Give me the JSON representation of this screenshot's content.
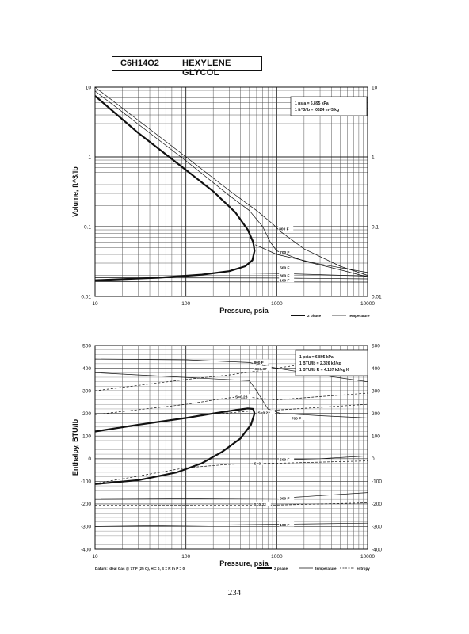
{
  "header": {
    "formula": "C6H14O2",
    "name": "HEXYLENE GLYCOL"
  },
  "page_number": "234",
  "chart_data": [
    {
      "type": "line",
      "xscale": "log",
      "yscale": "log",
      "xlim": [
        10,
        10000
      ],
      "ylim": [
        0.01,
        10
      ],
      "xlabel": "Pressure,  psia",
      "ylabel": "Volume, ft^3/lb",
      "x_ticks": [
        "10",
        "100",
        "1000",
        "10000"
      ],
      "y_ticks": [
        "0.01",
        "0.1",
        "1",
        "10"
      ],
      "right_ticks": [
        "0.01",
        "0.1",
        "1",
        "10"
      ],
      "grid": true,
      "info_box": {
        "position": "top-right",
        "lines": [
          "1 psia = 6.895 kPa",
          "1 ft^3/lb = .0624 m^3/kg"
        ]
      },
      "legend": {
        "position": "bottom-right",
        "items": [
          "2 phase",
          "temperature"
        ]
      },
      "series": [
        {
          "label": "",
          "style": "2phase",
          "points": [
            [
              10,
              7.5
            ],
            [
              30,
              2.2
            ],
            [
              100,
              0.65
            ],
            [
              200,
              0.32
            ],
            [
              350,
              0.16
            ],
            [
              480,
              0.09
            ],
            [
              550,
              0.06
            ],
            [
              570,
              0.045
            ],
            [
              540,
              0.033
            ],
            [
              450,
              0.027
            ],
            [
              300,
              0.023
            ],
            [
              150,
              0.0205
            ],
            [
              50,
              0.0185
            ],
            [
              10,
              0.017
            ]
          ]
        },
        {
          "label": "",
          "style": "temperature",
          "points": [
            [
              10,
              10
            ],
            [
              100,
              1
            ],
            [
              300,
              0.33
            ],
            [
              600,
              0.17
            ],
            [
              900,
              0.11
            ],
            [
              1100,
              0.085
            ],
            [
              2000,
              0.048
            ],
            [
              5000,
              0.027
            ],
            [
              10000,
              0.02
            ]
          ]
        },
        {
          "label": "800 F",
          "style": "temperature",
          "points": [
            [
              10,
              8.8
            ],
            [
              100,
              0.88
            ],
            [
              300,
              0.28
            ],
            [
              500,
              0.17
            ],
            [
              700,
              0.1
            ],
            [
              850,
              0.06
            ],
            [
              1000,
              0.045
            ],
            [
              2000,
              0.032
            ],
            [
              5000,
              0.024
            ],
            [
              10000,
              0.019
            ]
          ]
        },
        {
          "label": "700 F",
          "style": "temperature",
          "points": [
            [
              580,
              0.055
            ],
            [
              1000,
              0.04
            ],
            [
              3000,
              0.029
            ],
            [
              10000,
              0.022
            ]
          ]
        },
        {
          "label": "500 F",
          "style": "temperature",
          "points": [
            [
              10,
              0.0215
            ],
            [
              500,
              0.0215
            ],
            [
              1000,
              0.0213
            ],
            [
              3000,
              0.0205
            ],
            [
              10000,
              0.0195
            ]
          ]
        },
        {
          "label": "300 F",
          "style": "temperature",
          "points": [
            [
              10,
              0.0185
            ],
            [
              1000,
              0.0183
            ],
            [
              10000,
              0.0178
            ]
          ]
        },
        {
          "label": "100 F",
          "style": "temperature",
          "points": [
            [
              10,
              0.0162
            ],
            [
              10000,
              0.016
            ]
          ]
        }
      ]
    },
    {
      "type": "line",
      "xscale": "log",
      "yscale": "linear",
      "xlim": [
        10,
        10000
      ],
      "ylim": [
        -400,
        500
      ],
      "xlabel": "Pressure,  psia",
      "ylabel": "Enthalpy, BTU/lb",
      "x_ticks": [
        "10",
        "100",
        "1000",
        "10000"
      ],
      "y_ticks": [
        "-400",
        "-300",
        "-200",
        "-100",
        "0",
        "100",
        "200",
        "300",
        "400",
        "500"
      ],
      "right_ticks": [
        "-400",
        "-300",
        "-200",
        "-100",
        "0",
        "100",
        "200",
        "300",
        "400",
        "500"
      ],
      "grid": true,
      "info_box": {
        "position": "top-right",
        "lines": [
          "1 psia = 6.895 kPa",
          "1 BTU/lb = 2.326 kJ/kg",
          "1 BTU/lb R = 4.187 kJ/kg K"
        ]
      },
      "legend": {
        "position": "bottom-right",
        "items": [
          "2 phase",
          "temperature",
          "entropy"
        ]
      },
      "footnote": "Datum: Ideal Gas @ 77 F (25 C), H = 0, S = R ln P = 0",
      "series": [
        {
          "label": "",
          "style": "2phase",
          "points": [
            [
              10,
              120
            ],
            [
              30,
              150
            ],
            [
              100,
              180
            ],
            [
              200,
              200
            ],
            [
              350,
              215
            ],
            [
              480,
              222
            ],
            [
              550,
              220
            ],
            [
              570,
              200
            ],
            [
              520,
              150
            ],
            [
              400,
              90
            ],
            [
              250,
              30
            ],
            [
              150,
              -20
            ],
            [
              80,
              -60
            ],
            [
              30,
              -95
            ],
            [
              10,
              -112
            ]
          ]
        },
        {
          "label": "800 F",
          "style": "temperature",
          "points": [
            [
              10,
              440
            ],
            [
              100,
              437
            ],
            [
              500,
              425
            ],
            [
              1000,
              400
            ],
            [
              3000,
              370
            ],
            [
              10000,
              340
            ]
          ]
        },
        {
          "label": "700 F",
          "style": "temperature",
          "points": [
            [
              10,
              380
            ],
            [
              500,
              345
            ],
            [
              600,
              300
            ],
            [
              800,
              220
            ],
            [
              1100,
              200
            ],
            [
              3000,
              190
            ],
            [
              10000,
              180
            ]
          ]
        },
        {
          "label": "500 F",
          "style": "temperature",
          "points": [
            [
              10,
              -5
            ],
            [
              1000,
              -5
            ],
            [
              3000,
              0
            ],
            [
              10000,
              12
            ]
          ]
        },
        {
          "label": "300 F",
          "style": "temperature",
          "points": [
            [
              10,
              -180
            ],
            [
              1000,
              -175
            ],
            [
              10000,
              -150
            ]
          ]
        },
        {
          "label": "100 F",
          "style": "temperature",
          "points": [
            [
              10,
              -300
            ],
            [
              10000,
              -285
            ]
          ]
        },
        {
          "label": "S=0.37",
          "style": "entropy",
          "points": [
            [
              10,
              300
            ],
            [
              100,
              350
            ],
            [
              300,
              370
            ],
            [
              1000,
              400
            ],
            [
              10000,
              460
            ]
          ]
        },
        {
          "label": "S=0.28",
          "style": "entropy",
          "points": [
            [
              10,
              195
            ],
            [
              100,
              240
            ],
            [
              250,
              265
            ],
            [
              400,
              275
            ],
            [
              1000,
              260
            ],
            [
              10000,
              290
            ]
          ]
        },
        {
          "label": "S=0.22",
          "style": "entropy",
          "points": [
            [
              250,
              200
            ],
            [
              500,
              210
            ],
            [
              1000,
              215
            ],
            [
              10000,
              240
            ]
          ]
        },
        {
          "label": "S=0",
          "style": "entropy",
          "points": [
            [
              10,
              -110
            ],
            [
              100,
              -40
            ],
            [
              300,
              -25
            ],
            [
              1000,
              -20
            ],
            [
              10000,
              -10
            ]
          ]
        },
        {
          "label": "S=0.22",
          "style": "entropy",
          "points": [
            [
              10,
              -205
            ],
            [
              1000,
              -205
            ],
            [
              10000,
              -195
            ]
          ]
        }
      ]
    }
  ]
}
